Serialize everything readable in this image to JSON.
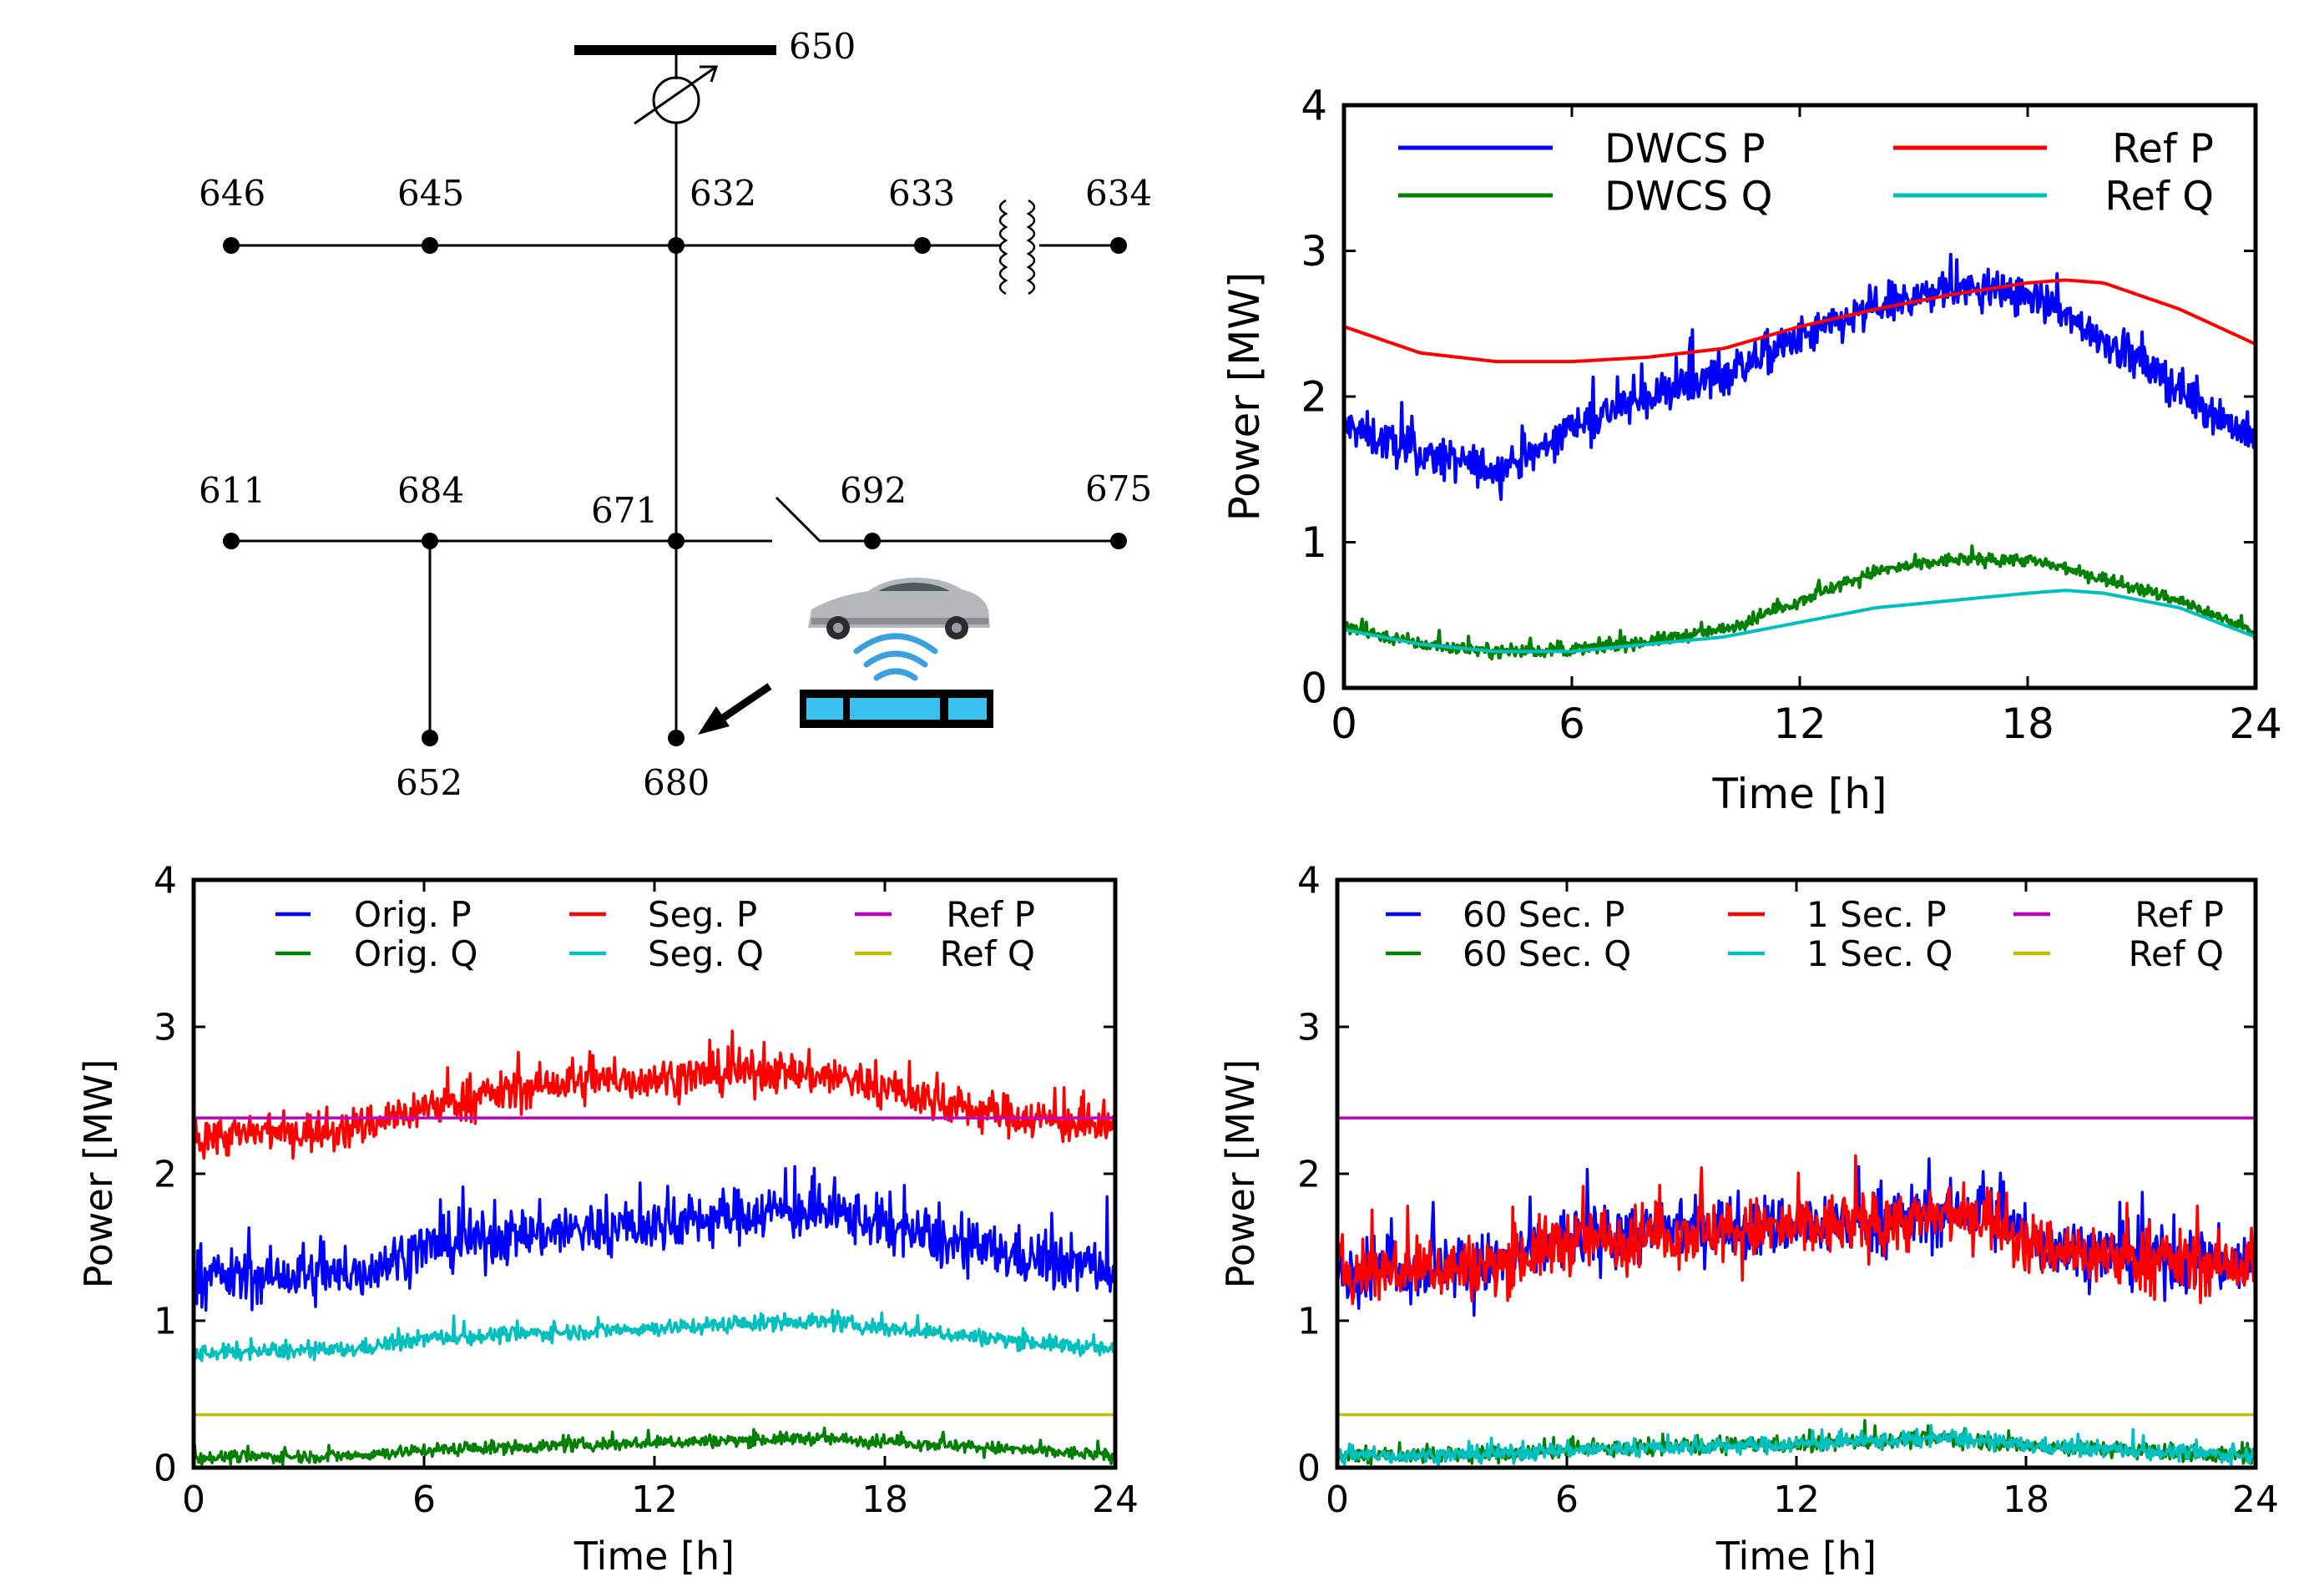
{
  "diagram": {
    "nodes": [
      {
        "id": "n650",
        "label": "650"
      },
      {
        "id": "n646",
        "label": "646"
      },
      {
        "id": "n645",
        "label": "645"
      },
      {
        "id": "n632",
        "label": "632"
      },
      {
        "id": "n633",
        "label": "633"
      },
      {
        "id": "n634",
        "label": "634"
      },
      {
        "id": "n611",
        "label": "611"
      },
      {
        "id": "n684",
        "label": "684"
      },
      {
        "id": "n671",
        "label": "671"
      },
      {
        "id": "n692",
        "label": "692"
      },
      {
        "id": "n675",
        "label": "675"
      },
      {
        "id": "n652",
        "label": "652"
      },
      {
        "id": "n680",
        "label": "680"
      }
    ],
    "colors": {
      "line": "#000000",
      "pad": "#3cc0f0",
      "wifi": "#3aa0e0",
      "car": "#b0b4b8"
    },
    "icons": [
      "regulator-icon",
      "transformer-icon",
      "switch-icon",
      "ev-car-icon",
      "wireless-charging-pad-icon",
      "arrow-icon"
    ]
  },
  "chart_data": [
    {
      "id": "top-right",
      "type": "line",
      "title": "",
      "xlabel": "Time [h]",
      "ylabel": "Power [MW]",
      "xlim": [
        0,
        24
      ],
      "ylim": [
        0,
        4
      ],
      "xticks": [
        "0",
        "6",
        "12",
        "18",
        "24"
      ],
      "yticks": [
        "0",
        "1",
        "2",
        "3",
        "4"
      ],
      "legend": {
        "placement": "top",
        "columns": 2
      },
      "grid": false,
      "series": [
        {
          "name": "DWCS P",
          "color": "#0000ff",
          "noisy": true,
          "noise": 0.13,
          "x": [
            0,
            2,
            4,
            5,
            6,
            8,
            10,
            12,
            14,
            16,
            18,
            20,
            22,
            24
          ],
          "y": [
            1.8,
            1.6,
            1.5,
            1.6,
            1.8,
            2.0,
            2.15,
            2.4,
            2.6,
            2.75,
            2.7,
            2.4,
            2.05,
            1.7
          ]
        },
        {
          "name": "DWCS Q",
          "color": "#008000",
          "noisy": true,
          "noise": 0.04,
          "x": [
            0,
            2,
            4,
            6,
            8,
            10,
            12,
            14,
            16,
            18,
            20,
            22,
            24
          ],
          "y": [
            0.42,
            0.3,
            0.25,
            0.26,
            0.32,
            0.4,
            0.6,
            0.8,
            0.88,
            0.88,
            0.75,
            0.6,
            0.38
          ]
        },
        {
          "name": "Ref P",
          "color": "#ff0000",
          "x": [
            0,
            2,
            4,
            6,
            8,
            10,
            12,
            14,
            16,
            18,
            19,
            20,
            22,
            24
          ],
          "y": [
            2.48,
            2.3,
            2.24,
            2.24,
            2.27,
            2.33,
            2.48,
            2.6,
            2.7,
            2.78,
            2.8,
            2.78,
            2.6,
            2.36
          ]
        },
        {
          "name": "Ref Q",
          "color": "#00bfbf",
          "x": [
            0,
            2,
            4,
            6,
            8,
            10,
            12,
            14,
            16,
            18,
            19,
            20,
            22,
            24
          ],
          "y": [
            0.4,
            0.3,
            0.25,
            0.25,
            0.3,
            0.35,
            0.45,
            0.55,
            0.6,
            0.65,
            0.67,
            0.65,
            0.55,
            0.35
          ]
        }
      ]
    },
    {
      "id": "bottom-left",
      "type": "line",
      "title": "",
      "xlabel": "Time [h]",
      "ylabel": "Power [MW]",
      "xlim": [
        0,
        24
      ],
      "ylim": [
        0,
        4
      ],
      "xticks": [
        "0",
        "6",
        "12",
        "18",
        "24"
      ],
      "yticks": [
        "0",
        "1",
        "2",
        "3",
        "4"
      ],
      "legend": {
        "placement": "top",
        "columns": 3
      },
      "grid": false,
      "series": [
        {
          "name": "Orig. P",
          "color": "#0000ff",
          "noisy": true,
          "noise": 0.17,
          "x": [
            0,
            4,
            6,
            9,
            12,
            15,
            17,
            20,
            24
          ],
          "y": [
            1.3,
            1.3,
            1.5,
            1.6,
            1.65,
            1.75,
            1.72,
            1.5,
            1.35
          ]
        },
        {
          "name": "Orig. Q",
          "color": "#008000",
          "noisy": true,
          "noise": 0.04,
          "x": [
            0,
            4,
            6,
            12,
            16,
            18,
            24
          ],
          "y": [
            0.07,
            0.08,
            0.12,
            0.17,
            0.2,
            0.18,
            0.08
          ]
        },
        {
          "name": "Seg. P",
          "color": "#ff0000",
          "noisy": true,
          "noise": 0.13,
          "x": [
            0,
            4,
            6,
            9,
            12,
            15,
            17,
            20,
            24
          ],
          "y": [
            2.25,
            2.3,
            2.45,
            2.6,
            2.65,
            2.7,
            2.65,
            2.45,
            2.3
          ]
        },
        {
          "name": "Seg. Q",
          "color": "#00bfbf",
          "noisy": true,
          "noise": 0.05,
          "x": [
            0,
            4,
            6,
            12,
            16,
            18,
            24
          ],
          "y": [
            0.78,
            0.8,
            0.88,
            0.95,
            1.0,
            0.95,
            0.8
          ]
        },
        {
          "name": "Ref P",
          "color": "#bf00bf",
          "x": [
            0,
            24
          ],
          "y": [
            2.38,
            2.38
          ]
        },
        {
          "name": "Ref Q",
          "color": "#bfbf00",
          "x": [
            0,
            24
          ],
          "y": [
            0.36,
            0.36
          ]
        }
      ]
    },
    {
      "id": "bottom-right",
      "type": "line",
      "title": "",
      "xlabel": "Time [h]",
      "ylabel": "Power [MW]",
      "xlim": [
        0,
        24
      ],
      "ylim": [
        0,
        4
      ],
      "xticks": [
        "0",
        "6",
        "12",
        "18",
        "24"
      ],
      "yticks": [
        "0",
        "1",
        "2",
        "3",
        "4"
      ],
      "legend": {
        "placement": "top",
        "columns": 3
      },
      "grid": false,
      "series": [
        {
          "name": "60 Sec. P",
          "color": "#0000ff",
          "noisy": true,
          "noise": 0.2,
          "x": [
            0,
            4,
            6,
            9,
            12,
            15,
            17,
            18,
            20,
            24
          ],
          "y": [
            1.35,
            1.38,
            1.55,
            1.62,
            1.65,
            1.7,
            1.75,
            1.55,
            1.45,
            1.38
          ]
        },
        {
          "name": "60 Sec. Q",
          "color": "#008000",
          "noisy": true,
          "noise": 0.05,
          "x": [
            0,
            4,
            6,
            12,
            16,
            18,
            24
          ],
          "y": [
            0.08,
            0.09,
            0.12,
            0.16,
            0.2,
            0.15,
            0.08
          ]
        },
        {
          "name": "1 Sec. P",
          "color": "#ff0000",
          "noisy": true,
          "noise": 0.2,
          "x": [
            0,
            4,
            6,
            9,
            12,
            15,
            17,
            18,
            20,
            24
          ],
          "y": [
            1.34,
            1.37,
            1.54,
            1.6,
            1.63,
            1.68,
            1.72,
            1.52,
            1.44,
            1.36
          ]
        },
        {
          "name": "1 Sec. Q",
          "color": "#00bfbf",
          "noisy": true,
          "noise": 0.05,
          "x": [
            0,
            4,
            6,
            12,
            16,
            18,
            24
          ],
          "y": [
            0.08,
            0.09,
            0.12,
            0.16,
            0.2,
            0.15,
            0.08
          ]
        },
        {
          "name": "Ref P",
          "color": "#bf00bf",
          "x": [
            0,
            24
          ],
          "y": [
            2.38,
            2.38
          ]
        },
        {
          "name": "Ref Q",
          "color": "#bfbf00",
          "x": [
            0,
            24
          ],
          "y": [
            0.36,
            0.36
          ]
        }
      ]
    }
  ]
}
